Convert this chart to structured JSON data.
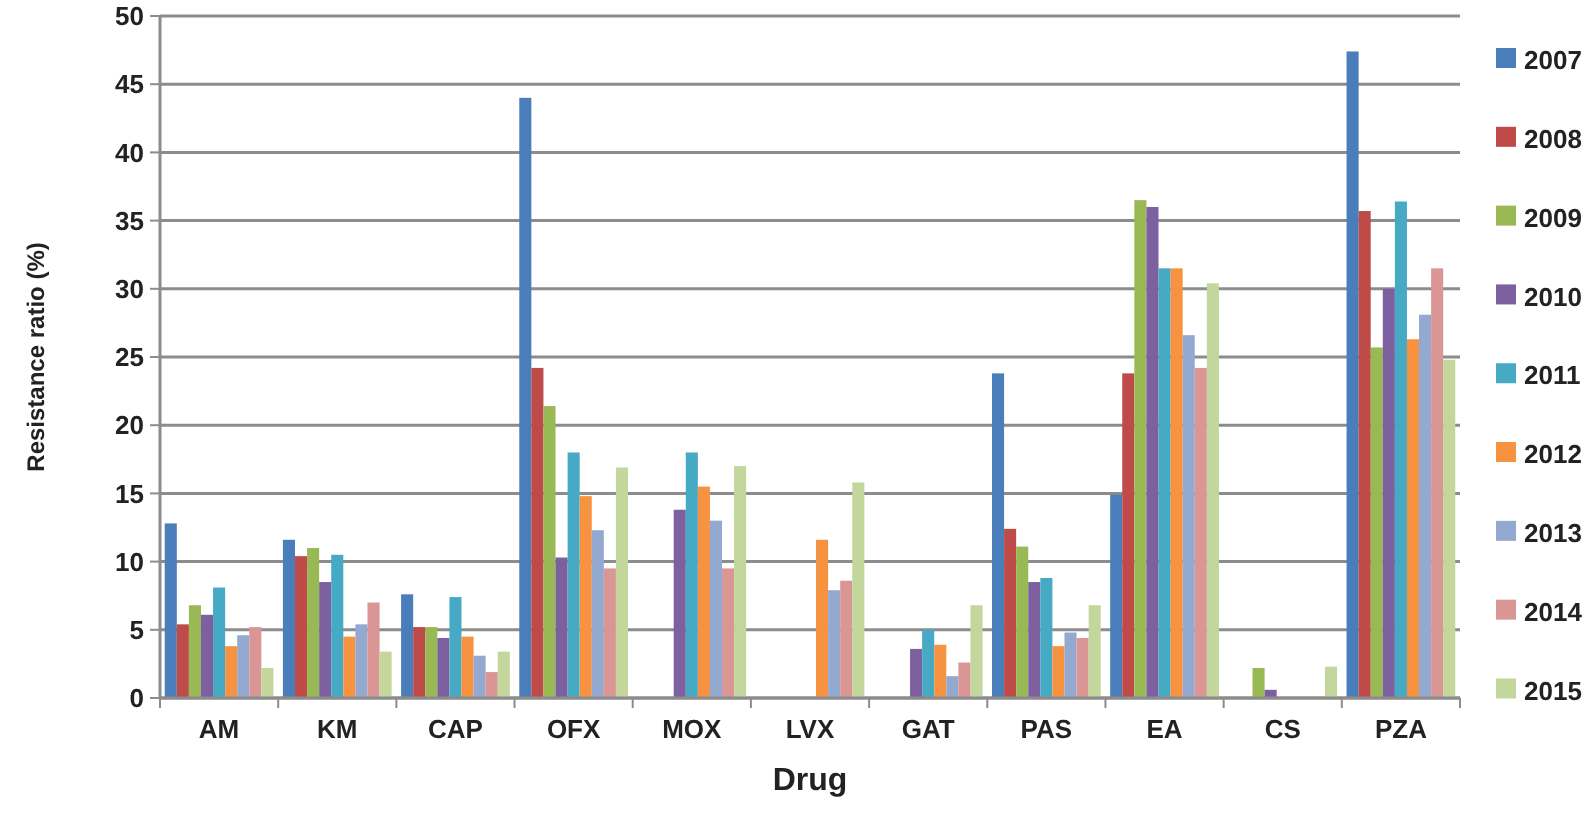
{
  "chart_data": {
    "type": "bar",
    "xlabel": "Drug",
    "ylabel": "Resistance ratio (%)",
    "categories": [
      "AM",
      "KM",
      "CAP",
      "OFX",
      "MOX",
      "LVX",
      "GAT",
      "PAS",
      "EA",
      "CS",
      "PZA"
    ],
    "series": [
      {
        "name": "2007",
        "color": "#4a7ebb",
        "values": [
          12.8,
          11.6,
          7.6,
          44,
          0,
          0,
          0,
          23.8,
          14.9,
          0,
          47.4
        ]
      },
      {
        "name": "2008",
        "color": "#be4b48",
        "values": [
          5.4,
          10.4,
          5.2,
          24.2,
          0,
          0,
          0,
          12.4,
          23.8,
          0,
          35.7
        ]
      },
      {
        "name": "2009",
        "color": "#98b954",
        "values": [
          6.8,
          11,
          5.2,
          21.4,
          0,
          0,
          0,
          11.1,
          36.5,
          2.2,
          25.7
        ]
      },
      {
        "name": "2010",
        "color": "#7d60a0",
        "values": [
          6.1,
          8.5,
          4.4,
          10.3,
          13.8,
          0,
          3.6,
          8.5,
          36,
          0.6,
          30
        ]
      },
      {
        "name": "2011",
        "color": "#46aac5",
        "values": [
          8.1,
          10.5,
          7.4,
          18,
          18,
          0,
          5,
          8.8,
          31.5,
          0,
          36.4
        ]
      },
      {
        "name": "2012",
        "color": "#f69240",
        "values": [
          3.8,
          4.5,
          4.5,
          14.8,
          15.5,
          11.6,
          3.9,
          3.8,
          31.5,
          0,
          26.3
        ]
      },
      {
        "name": "2013",
        "color": "#93a9d0",
        "values": [
          4.6,
          5.4,
          3.1,
          12.3,
          13,
          7.9,
          1.6,
          4.8,
          26.6,
          0,
          28.1
        ]
      },
      {
        "name": "2014",
        "color": "#d99694",
        "values": [
          5.2,
          7,
          1.9,
          9.5,
          9.5,
          8.6,
          2.6,
          4.4,
          24.2,
          0,
          31.5
        ]
      },
      {
        "name": "2015",
        "color": "#c3d69b",
        "values": [
          2.2,
          3.4,
          3.4,
          16.9,
          17,
          15.8,
          6.8,
          6.8,
          30.4,
          2.3,
          24.8
        ]
      }
    ],
    "ylim": [
      0,
      50
    ],
    "yticks": [
      0,
      5,
      10,
      15,
      20,
      25,
      30,
      35,
      40,
      45,
      50
    ],
    "grid": "y",
    "legend": "right"
  }
}
